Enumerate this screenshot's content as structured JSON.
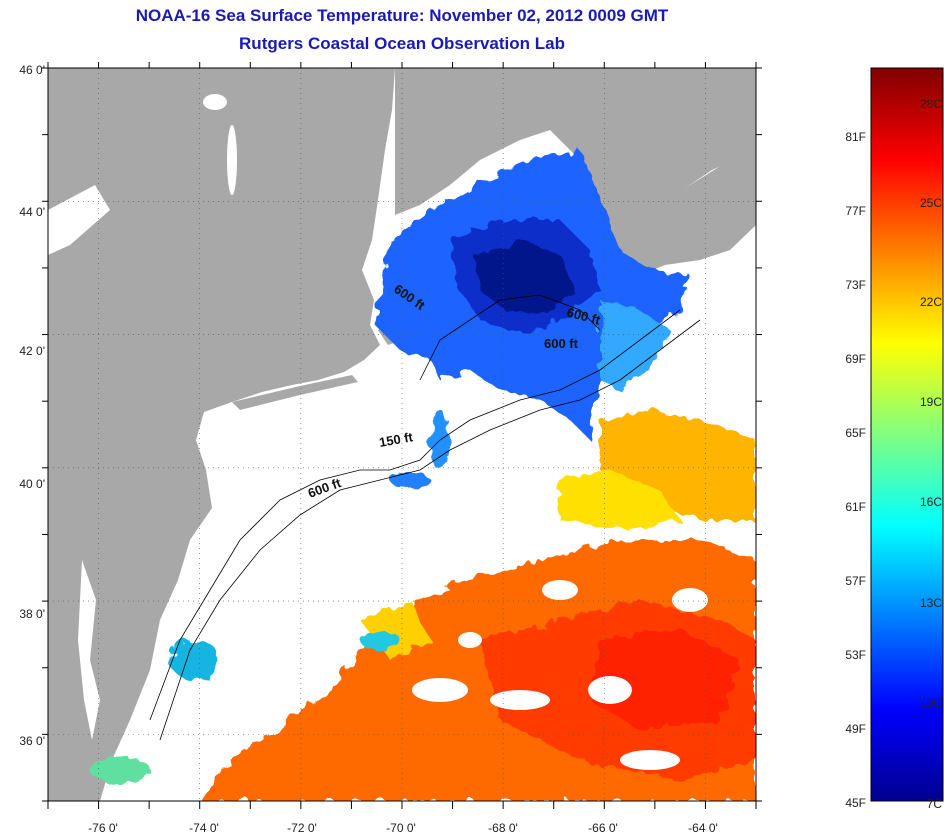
{
  "title": {
    "line1": "NOAA-16 Sea Surface Temperature:  November 02, 2012 0009 GMT",
    "line2": "Rutgers Coastal Ocean Observation Lab"
  },
  "map": {
    "lat_labels": [
      "46 0'",
      "44 0'",
      "42 0'",
      "40 0'",
      "38 0'",
      "36 0'"
    ],
    "lon_labels": [
      "-76 0'",
      "-74 0'",
      "-72 0'",
      "-70 0'",
      "-68 0'",
      "-66 0'",
      "-64 0'"
    ],
    "lat_values": [
      46,
      44,
      42,
      40,
      38,
      36
    ],
    "lon_values": [
      -76,
      -74,
      -72,
      -70,
      -68,
      -66,
      -64
    ],
    "lat_range": [
      35,
      46
    ],
    "lon_range": [
      -77,
      -63
    ],
    "isobath_labels": [
      "600 ft",
      "600 ft",
      "600 ft",
      "150 ft",
      "600 ft"
    ],
    "colors": {
      "land": "#a8a8a8",
      "cloud": "#ffffff",
      "title": "#1a1ab4"
    }
  },
  "colorbar": {
    "celsius_labels": [
      "28C",
      "25C",
      "22C",
      "19C",
      "16C",
      "13C",
      "10C",
      "7C"
    ],
    "fahrenheit_labels": [
      "81F",
      "77F",
      "73F",
      "69F",
      "65F",
      "61F",
      "57F",
      "53F",
      "49F",
      "45F"
    ],
    "colormap": "jet"
  }
}
